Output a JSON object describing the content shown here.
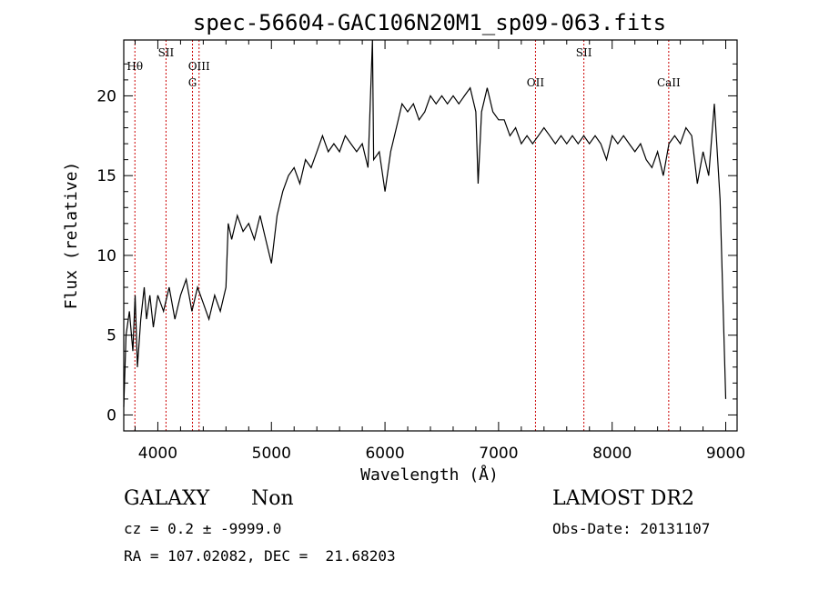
{
  "chart_data": {
    "type": "line",
    "title": "spec-56604-GAC106N20M1_sp09-063.fits",
    "xlabel": "Wavelength (Å)",
    "ylabel": "Flux (relative)",
    "xlim": [
      3700,
      9100
    ],
    "ylim": [
      -1,
      23.5
    ],
    "x_ticks": [
      4000,
      5000,
      6000,
      7000,
      8000,
      9000
    ],
    "y_ticks": [
      0,
      5,
      10,
      15,
      20
    ],
    "grid": false,
    "series": [
      {
        "x": [
          3700,
          3720,
          3750,
          3780,
          3800,
          3820,
          3850,
          3880,
          3900,
          3930,
          3960,
          4000,
          4050,
          4100,
          4150,
          4200,
          4250,
          4300,
          4350,
          4400,
          4450,
          4500,
          4550,
          4600,
          4620,
          4650,
          4700,
          4750,
          4800,
          4850,
          4900,
          4950,
          5000,
          5050,
          5100,
          5150,
          5200,
          5250,
          5300,
          5350,
          5400,
          5450,
          5500,
          5550,
          5600,
          5650,
          5700,
          5750,
          5800,
          5850,
          5890,
          5900,
          5950,
          6000,
          6050,
          6100,
          6150,
          6200,
          6250,
          6300,
          6350,
          6400,
          6450,
          6500,
          6550,
          6600,
          6650,
          6700,
          6750,
          6800,
          6820,
          6850,
          6900,
          6950,
          7000,
          7050,
          7100,
          7150,
          7200,
          7250,
          7300,
          7350,
          7400,
          7450,
          7500,
          7550,
          7600,
          7650,
          7700,
          7750,
          7800,
          7850,
          7900,
          7950,
          8000,
          8050,
          8100,
          8150,
          8200,
          8250,
          8300,
          8350,
          8400,
          8450,
          8500,
          8550,
          8600,
          8650,
          8700,
          8750,
          8800,
          8850,
          8900,
          8950,
          9000
        ],
        "y": [
          0.5,
          5.0,
          6.5,
          4.0,
          7.5,
          3.0,
          6.0,
          8.0,
          6.0,
          7.5,
          5.5,
          7.5,
          6.5,
          8.0,
          6.0,
          7.5,
          8.5,
          6.5,
          8.0,
          7.0,
          6.0,
          7.5,
          6.5,
          8.0,
          12.0,
          11.0,
          12.5,
          11.5,
          12.0,
          11.0,
          12.5,
          11.0,
          9.5,
          12.5,
          14.0,
          15.0,
          15.5,
          14.5,
          16.0,
          15.5,
          16.5,
          17.5,
          16.5,
          17.0,
          16.5,
          17.5,
          17.0,
          16.5,
          17.0,
          15.5,
          23.5,
          16.0,
          16.5,
          14.0,
          16.5,
          18.0,
          19.5,
          19.0,
          19.5,
          18.5,
          19.0,
          20.0,
          19.5,
          20.0,
          19.5,
          20.0,
          19.5,
          20.0,
          20.5,
          19.0,
          14.5,
          19.0,
          20.5,
          19.0,
          18.5,
          18.5,
          17.5,
          18.0,
          17.0,
          17.5,
          17.0,
          17.5,
          18.0,
          17.5,
          17.0,
          17.5,
          17.0,
          17.5,
          17.0,
          17.5,
          17.0,
          17.5,
          17.0,
          16.0,
          17.5,
          17.0,
          17.5,
          17.0,
          16.5,
          17.0,
          16.0,
          15.5,
          16.5,
          15.0,
          17.0,
          17.5,
          17.0,
          18.0,
          17.5,
          14.5,
          16.5,
          15.0,
          19.5,
          13.5,
          1.0
        ]
      }
    ],
    "lines": [
      {
        "label": "Hθ",
        "x": 3798
      },
      {
        "label": "SII",
        "x": 4072
      },
      {
        "label": "G",
        "x": 4305
      },
      {
        "label": "OIII",
        "x": 4363
      },
      {
        "label": "OII",
        "x": 7325
      },
      {
        "label": "SII",
        "x": 7751
      },
      {
        "label": "CaII",
        "x": 8498
      }
    ]
  },
  "info": {
    "class_label": "GALAXY",
    "subclass_label": "Non",
    "cz_text": "cz = 0.2 ± -9999.0",
    "radec_text": "RA = 107.02082, DEC =  21.68203",
    "survey_label": "LAMOST DR2",
    "obs_date_text": "Obs-Date: 20131107"
  }
}
